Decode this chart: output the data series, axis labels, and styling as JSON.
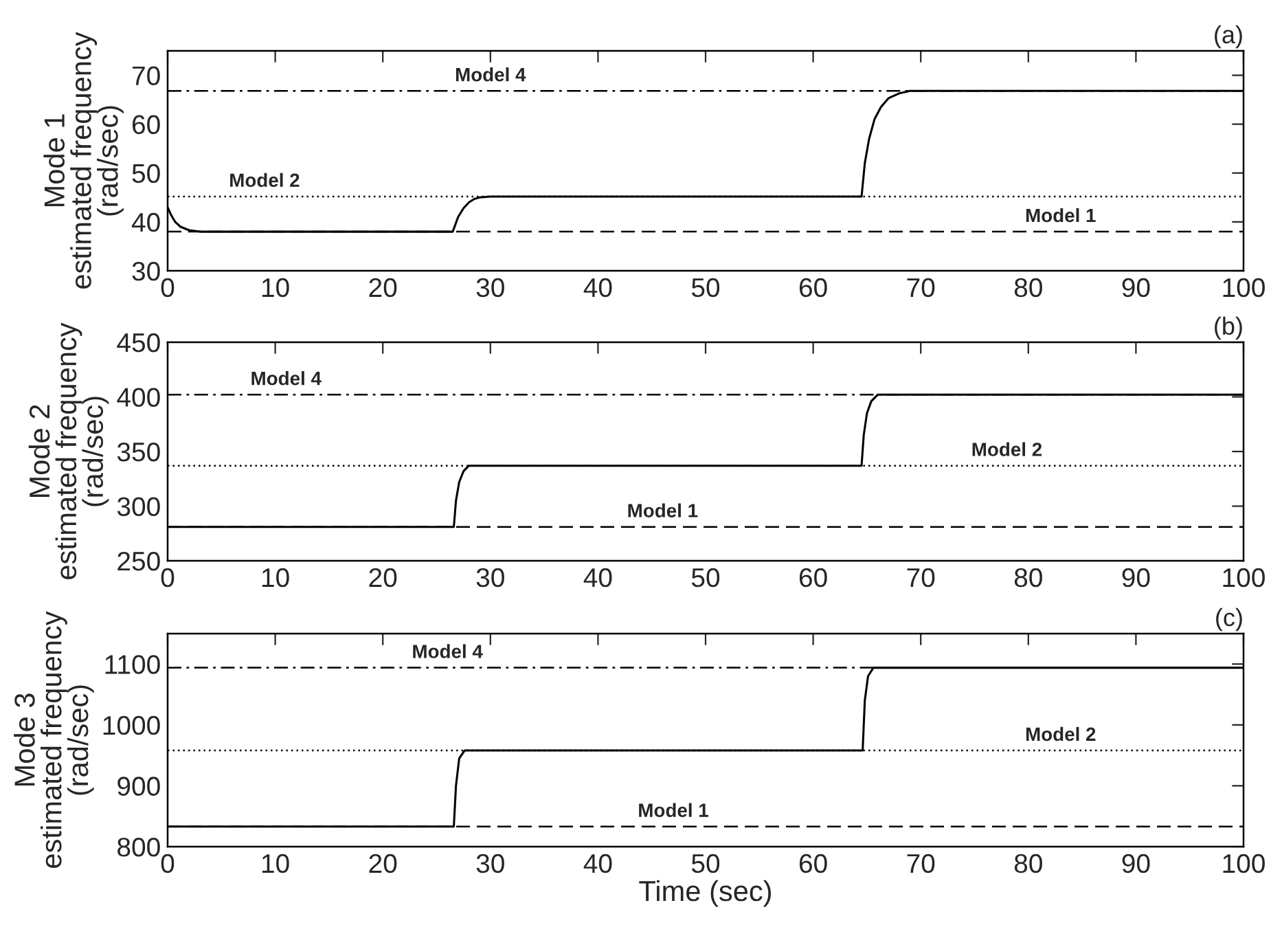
{
  "chart_data": [
    {
      "type": "line",
      "title": "(a)",
      "ylabel": "Mode 1\nestimated frequency\n(rad/sec)",
      "xlim": [
        0,
        100
      ],
      "xticks": [
        0,
        10,
        20,
        30,
        40,
        50,
        60,
        70,
        80,
        90,
        100
      ],
      "ylim": [
        30,
        75
      ],
      "yticks": [
        30,
        40,
        50,
        60,
        70
      ],
      "grid": false,
      "legend": false,
      "series": [
        {
          "color": "#000000",
          "line_style": "solid",
          "x": [
            0,
            0.3,
            0.7,
            1.2,
            2,
            3,
            26.5,
            27,
            27.5,
            28,
            28.5,
            29,
            30,
            64.5,
            64.8,
            65.2,
            65.7,
            66.3,
            67,
            68,
            69,
            100
          ],
          "values": [
            43,
            41.5,
            40,
            39,
            38.3,
            38,
            38,
            41,
            42.8,
            44,
            44.7,
            45,
            45.2,
            45.2,
            52,
            57,
            61,
            63.5,
            65.3,
            66.3,
            66.8,
            66.8
          ]
        }
      ],
      "ref_lines": [
        {
          "axis": "y",
          "value": 38,
          "line_style": "dashed",
          "color": "#000000"
        },
        {
          "axis": "y",
          "value": 45.2,
          "line_style": "dotted",
          "color": "#000000"
        },
        {
          "axis": "y",
          "value": 66.8,
          "line_style": "dashdot",
          "color": "#000000"
        }
      ],
      "annotations": [
        {
          "text": "Model 4",
          "x": 30,
          "y": 66.8
        },
        {
          "text": "Model 2",
          "x": 9,
          "y": 45.2
        },
        {
          "text": "Model 1",
          "x": 83,
          "y": 38
        }
      ]
    },
    {
      "type": "line",
      "title": "(b)",
      "ylabel": "Mode 2\nestimated frequency\n(rad/sec)",
      "xlim": [
        0,
        100
      ],
      "xticks": [
        0,
        10,
        20,
        30,
        40,
        50,
        60,
        70,
        80,
        90,
        100
      ],
      "ylim": [
        250,
        450
      ],
      "yticks": [
        250,
        300,
        350,
        400,
        450
      ],
      "grid": false,
      "legend": false,
      "series": [
        {
          "color": "#000000",
          "line_style": "solid",
          "x": [
            0,
            26.6,
            26.8,
            27.1,
            27.5,
            28,
            64.5,
            64.7,
            65,
            65.4,
            66,
            100
          ],
          "values": [
            281,
            281,
            305,
            322,
            332,
            337,
            337,
            365,
            385,
            396,
            402,
            402
          ]
        }
      ],
      "ref_lines": [
        {
          "axis": "y",
          "value": 281,
          "line_style": "dashed",
          "color": "#000000"
        },
        {
          "axis": "y",
          "value": 337,
          "line_style": "dotted",
          "color": "#000000"
        },
        {
          "axis": "y",
          "value": 402,
          "line_style": "dashdot",
          "color": "#000000"
        }
      ],
      "annotations": [
        {
          "text": "Model 4",
          "x": 11,
          "y": 402
        },
        {
          "text": "Model 2",
          "x": 78,
          "y": 337
        },
        {
          "text": "Model 1",
          "x": 46,
          "y": 281
        }
      ]
    },
    {
      "type": "line",
      "title": "(c)",
      "xlabel": "Time (sec)",
      "ylabel": "Mode 3\nestimated frequency\n(rad/sec)",
      "xlim": [
        0,
        100
      ],
      "xticks": [
        0,
        10,
        20,
        30,
        40,
        50,
        60,
        70,
        80,
        90,
        100
      ],
      "ylim": [
        800,
        1150
      ],
      "yticks": [
        800,
        900,
        1000,
        1100
      ],
      "grid": false,
      "legend": false,
      "series": [
        {
          "color": "#000000",
          "line_style": "solid",
          "x": [
            0,
            26.6,
            26.8,
            27.1,
            27.6,
            64.6,
            64.8,
            65.1,
            65.6,
            100
          ],
          "values": [
            833,
            833,
            900,
            945,
            958,
            958,
            1040,
            1080,
            1094,
            1094
          ]
        }
      ],
      "ref_lines": [
        {
          "axis": "y",
          "value": 833,
          "line_style": "dashed",
          "color": "#000000"
        },
        {
          "axis": "y",
          "value": 958,
          "line_style": "dotted",
          "color": "#000000"
        },
        {
          "axis": "y",
          "value": 1094,
          "line_style": "dashdot",
          "color": "#000000"
        }
      ],
      "annotations": [
        {
          "text": "Model 4",
          "x": 26,
          "y": 1094
        },
        {
          "text": "Model 2",
          "x": 83,
          "y": 958
        },
        {
          "text": "Model 1",
          "x": 47,
          "y": 833
        }
      ]
    }
  ]
}
